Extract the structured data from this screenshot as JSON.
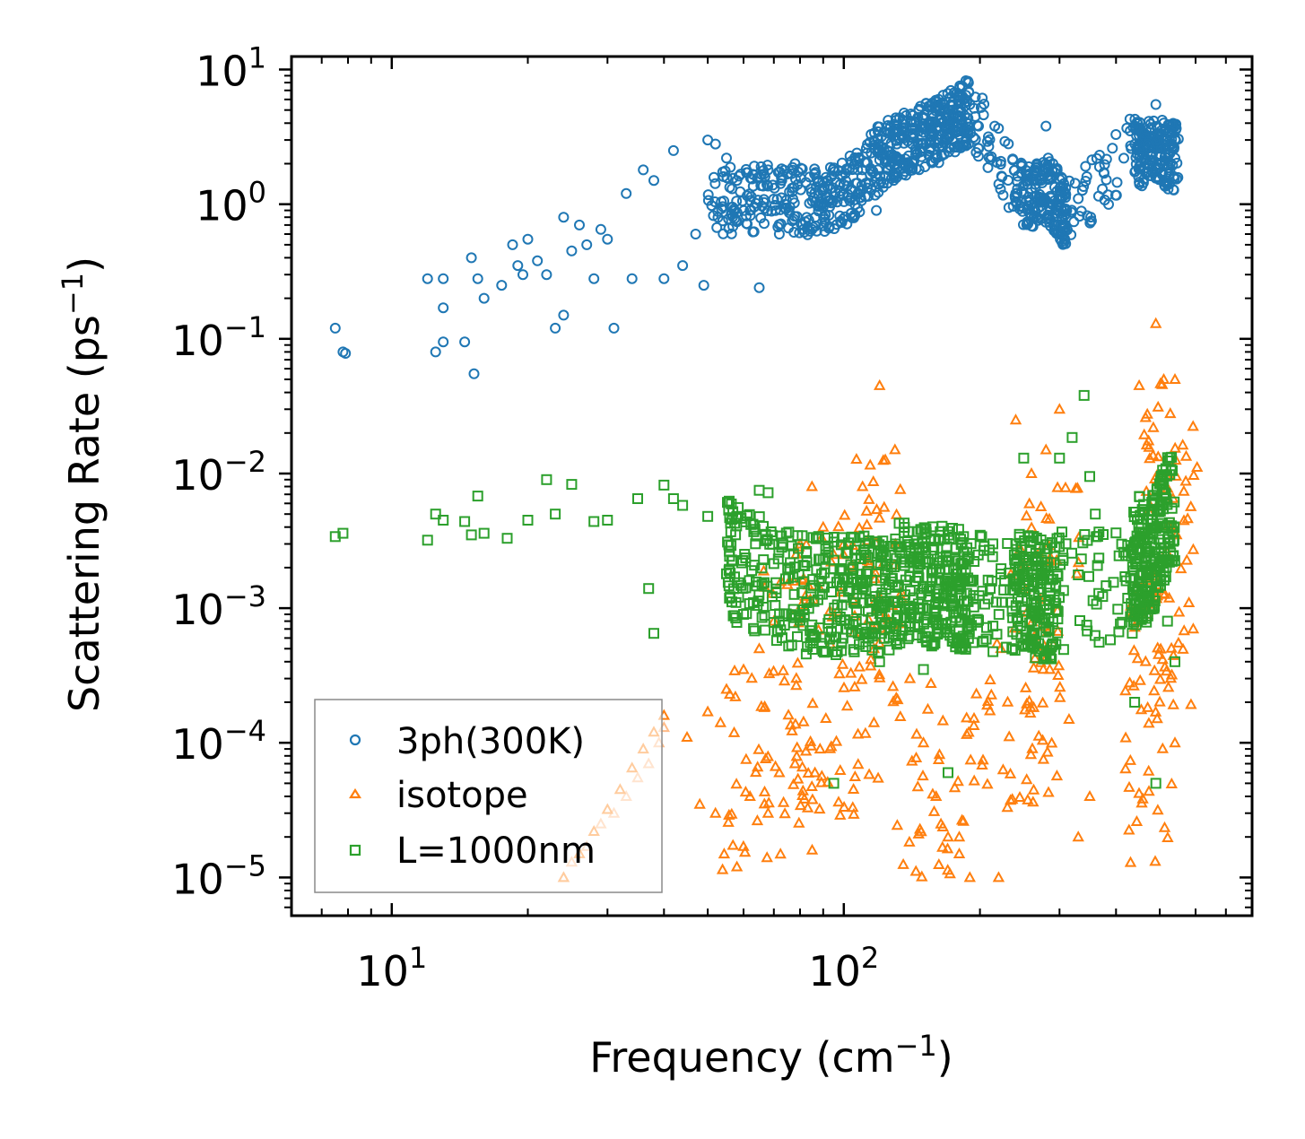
{
  "chart_data": {
    "type": "scatter",
    "x_scale": "log",
    "y_scale": "log",
    "xlim": [
      6,
      800
    ],
    "ylim": [
      5.2e-06,
      12.5
    ],
    "xlabel": "Frequency (cm",
    "xlabel_sup": "−1",
    "xlabel_end": ")",
    "ylabel": "Scattering Rate (ps",
    "ylabel_sup": "−1",
    "ylabel_end": ")",
    "x_ticks": [
      {
        "value": 10,
        "base": "10",
        "exp": "1"
      },
      {
        "value": 100,
        "base": "10",
        "exp": "2"
      }
    ],
    "y_ticks": [
      {
        "value": 10,
        "base": "10",
        "exp": "1"
      },
      {
        "value": 1,
        "base": "10",
        "exp": "0"
      },
      {
        "value": 0.1,
        "base": "10",
        "exp": "−1"
      },
      {
        "value": 0.01,
        "base": "10",
        "exp": "−2"
      },
      {
        "value": 0.001,
        "base": "10",
        "exp": "−3"
      },
      {
        "value": 0.0001,
        "base": "10",
        "exp": "−4"
      },
      {
        "value": 1e-05,
        "base": "10",
        "exp": "−5"
      }
    ],
    "legend_position": "lower-left",
    "series": [
      {
        "name": "3ph(300K)",
        "marker": "circle",
        "color": "#1f77b4",
        "points": [
          [
            7.5,
            0.12
          ],
          [
            7.8,
            0.08
          ],
          [
            7.9,
            0.078
          ],
          [
            12,
            0.28
          ],
          [
            12.5,
            0.08
          ],
          [
            13,
            0.28
          ],
          [
            13,
            0.17
          ],
          [
            13,
            0.095
          ],
          [
            14.5,
            0.095
          ],
          [
            15,
            0.4
          ],
          [
            15.2,
            0.055
          ],
          [
            15.5,
            0.28
          ],
          [
            16,
            0.2
          ],
          [
            17.5,
            0.25
          ],
          [
            18.5,
            0.5
          ],
          [
            19,
            0.35
          ],
          [
            19.5,
            0.3
          ],
          [
            20,
            0.55
          ],
          [
            21,
            0.38
          ],
          [
            22,
            0.3
          ],
          [
            23,
            0.12
          ],
          [
            24,
            0.15
          ],
          [
            24,
            0.8
          ],
          [
            25,
            0.45
          ],
          [
            26,
            0.7
          ],
          [
            27,
            0.5
          ],
          [
            28,
            0.28
          ],
          [
            29,
            0.65
          ],
          [
            30,
            0.55
          ],
          [
            31,
            0.12
          ],
          [
            33,
            1.2
          ],
          [
            34,
            0.28
          ],
          [
            36,
            1.8
          ],
          [
            38,
            1.5
          ],
          [
            40,
            0.28
          ],
          [
            42,
            2.5
          ],
          [
            44,
            0.35
          ],
          [
            47,
            0.6
          ],
          [
            49,
            0.25
          ],
          [
            50,
            3
          ],
          [
            52,
            2.8
          ],
          [
            55,
            2.2
          ],
          [
            58,
            1.5
          ],
          [
            62,
            0.9
          ],
          [
            65,
            0.24
          ],
          [
            68,
            1.8
          ],
          [
            72,
            0.6
          ],
          [
            78,
            2
          ],
          [
            85,
            0.65
          ],
          [
            92,
            1.5
          ],
          [
            100,
            1.4
          ],
          [
            110,
            1.8
          ],
          [
            118,
            0.9
          ],
          [
            125,
            2.5
          ],
          [
            135,
            3.2
          ],
          [
            150,
            3.8
          ],
          [
            170,
            5
          ],
          [
            180,
            6.2
          ],
          [
            190,
            5.5
          ],
          [
            240,
            1.2
          ],
          [
            265,
            1.8
          ],
          [
            280,
            3.8
          ],
          [
            290,
            2
          ],
          [
            300,
            1
          ],
          [
            330,
            1.1
          ],
          [
            430,
            3.5
          ],
          [
            470,
            2.8
          ],
          [
            490,
            5.5
          ],
          [
            510,
            4
          ],
          [
            540,
            2.2
          ]
        ],
        "band": [
          [
            50,
            1.0
          ],
          [
            60,
            1.1
          ],
          [
            70,
            1.1
          ],
          [
            80,
            1.05
          ],
          [
            90,
            1.05
          ],
          [
            100,
            1.2
          ],
          [
            110,
            1.6
          ],
          [
            120,
            2.2
          ],
          [
            130,
            2.7
          ],
          [
            140,
            3.0
          ],
          [
            150,
            3.2
          ],
          [
            160,
            3.5
          ],
          [
            170,
            4.0
          ],
          [
            180,
            4.5
          ],
          [
            190,
            5.0
          ],
          [
            240,
            1.3
          ],
          [
            260,
            1.2
          ],
          [
            280,
            1.3
          ],
          [
            300,
            1.0
          ],
          [
            310,
            0.8
          ],
          [
            440,
            2.8
          ],
          [
            460,
            2.2
          ],
          [
            490,
            2.5
          ],
          [
            520,
            2.3
          ],
          [
            550,
            2.2
          ]
        ]
      },
      {
        "name": "isotope",
        "marker": "triangle",
        "color": "#ff7f0e",
        "faded_color": "#ffbb88",
        "points": [
          [
            24,
            1e-05
          ],
          [
            26,
            1.5e-05
          ],
          [
            28,
            2.2e-05
          ],
          [
            30,
            3.2e-05
          ],
          [
            32,
            4.5e-05
          ],
          [
            34,
            6.5e-05
          ],
          [
            36,
            9e-05
          ],
          [
            38,
            0.00012
          ],
          [
            40,
            0.00016
          ],
          [
            45,
            0.00011
          ],
          [
            50,
            0.00017
          ],
          [
            55,
            0.00025
          ],
          [
            60,
            0.00035
          ],
          [
            65,
            0.0005
          ],
          [
            70,
            0.0008
          ],
          [
            75,
            0.0015
          ],
          [
            80,
            0.003
          ],
          [
            85,
            0.008
          ],
          [
            90,
            0.004
          ],
          [
            95,
            0.0025
          ],
          [
            100,
            0.003
          ],
          [
            110,
            0.008
          ],
          [
            120,
            0.045
          ],
          [
            130,
            0.003
          ],
          [
            140,
            0.0003
          ],
          [
            150,
            0.0001
          ],
          [
            160,
            4e-05
          ],
          [
            170,
            2e-05
          ],
          [
            180,
            2e-05
          ],
          [
            190,
            1e-05
          ],
          [
            240,
            0.025
          ],
          [
            260,
            0.01
          ],
          [
            280,
            0.015
          ],
          [
            300,
            0.03
          ],
          [
            450,
            0.045
          ],
          [
            490,
            0.13
          ],
          [
            510,
            0.05
          ],
          [
            540,
            0.05
          ],
          [
            48,
            3.5e-05
          ],
          [
            52,
            3e-05
          ],
          [
            58,
            1.2e-05
          ],
          [
            62,
            4e-05
          ],
          [
            68,
            3e-05
          ],
          [
            72,
            6e-05
          ],
          [
            78,
            7e-05
          ],
          [
            220,
            1e-05
          ],
          [
            330,
            2e-05
          ],
          [
            350,
            4e-05
          ],
          [
            540,
            0.0001
          ]
        ],
        "faded_points": [
          [
            24,
            1e-05
          ],
          [
            25,
            1.3e-05
          ],
          [
            27,
            1.7e-05
          ],
          [
            29,
            2.5e-05
          ],
          [
            31,
            3e-05
          ],
          [
            33,
            4e-05
          ],
          [
            35,
            5.5e-05
          ],
          [
            37,
            7e-05
          ],
          [
            39,
            0.0001
          ],
          [
            40,
            0.00013
          ]
        ]
      },
      {
        "name": "L=1000nm",
        "marker": "square",
        "color": "#2ca02c",
        "points": [
          [
            7.5,
            0.0034
          ],
          [
            7.8,
            0.0036
          ],
          [
            12,
            0.0032
          ],
          [
            12.5,
            0.005
          ],
          [
            13,
            0.0045
          ],
          [
            14.5,
            0.0044
          ],
          [
            15,
            0.0035
          ],
          [
            15.5,
            0.0068
          ],
          [
            16,
            0.0036
          ],
          [
            18,
            0.0033
          ],
          [
            20,
            0.0045
          ],
          [
            22,
            0.009
          ],
          [
            23,
            0.005
          ],
          [
            25,
            0.0083
          ],
          [
            28,
            0.0044
          ],
          [
            30,
            0.0045
          ],
          [
            35,
            0.0065
          ],
          [
            37,
            0.0014
          ],
          [
            38,
            0.00065
          ],
          [
            40,
            0.0082
          ],
          [
            42,
            0.0065
          ],
          [
            44,
            0.0058
          ],
          [
            50,
            0.0048
          ],
          [
            55,
            0.0018
          ],
          [
            60,
            0.0009
          ],
          [
            65,
            0.0075
          ],
          [
            68,
            0.0072
          ],
          [
            72,
            0.0008
          ],
          [
            78,
            0.00085
          ],
          [
            85,
            0.00075
          ],
          [
            95,
            5e-05
          ],
          [
            100,
            0.0012
          ],
          [
            110,
            0.0014
          ],
          [
            120,
            0.0004
          ],
          [
            130,
            0.003
          ],
          [
            140,
            0.001
          ],
          [
            150,
            0.00035
          ],
          [
            160,
            0.0012
          ],
          [
            170,
            6e-05
          ],
          [
            180,
            0.0015
          ],
          [
            190,
            0.0016
          ],
          [
            240,
            0.003
          ],
          [
            250,
            0.013
          ],
          [
            260,
            0.0008
          ],
          [
            280,
            0.002
          ],
          [
            300,
            0.013
          ],
          [
            320,
            0.0185
          ],
          [
            340,
            0.038
          ],
          [
            350,
            0.0095
          ],
          [
            360,
            0.005
          ],
          [
            440,
            0.0002
          ],
          [
            460,
            0.001
          ],
          [
            490,
            5e-05
          ],
          [
            520,
            0.0008
          ],
          [
            540,
            0.0004
          ]
        ],
        "band": [
          [
            55,
            0.0025
          ],
          [
            60,
            0.002
          ],
          [
            70,
            0.0015
          ],
          [
            80,
            0.0013
          ],
          [
            90,
            0.0012
          ],
          [
            100,
            0.0012
          ],
          [
            110,
            0.0013
          ],
          [
            120,
            0.0012
          ],
          [
            130,
            0.0015
          ],
          [
            140,
            0.0016
          ],
          [
            150,
            0.0015
          ],
          [
            160,
            0.0014
          ],
          [
            170,
            0.0015
          ],
          [
            180,
            0.0014
          ],
          [
            190,
            0.0013
          ],
          [
            235,
            0.0012
          ],
          [
            250,
            0.0015
          ],
          [
            265,
            0.0012
          ],
          [
            280,
            0.0011
          ],
          [
            300,
            0.0013
          ],
          [
            430,
            0.0015
          ],
          [
            450,
            0.0025
          ],
          [
            470,
            0.0018
          ],
          [
            490,
            0.003
          ],
          [
            510,
            0.0045
          ],
          [
            540,
            0.005
          ]
        ]
      }
    ]
  }
}
